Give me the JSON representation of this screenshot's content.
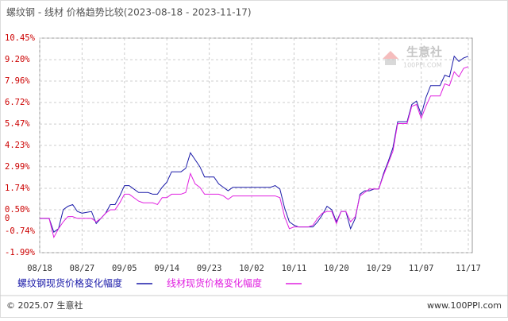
{
  "chart_data": {
    "type": "line",
    "title": "螺纹钢 - 线材 价格趋势比较(2023-08-18 - 2023-11-17)",
    "categories": [
      "08/18",
      null,
      null,
      null,
      null,
      null,
      null,
      null,
      null,
      "08/27",
      null,
      null,
      null,
      null,
      null,
      null,
      null,
      null,
      "09/05",
      null,
      null,
      null,
      null,
      null,
      null,
      null,
      null,
      "09/14",
      null,
      null,
      null,
      null,
      null,
      null,
      null,
      null,
      "09/23",
      null,
      null,
      null,
      null,
      null,
      null,
      null,
      null,
      "10/02",
      null,
      null,
      null,
      null,
      null,
      null,
      null,
      null,
      "10/11",
      null,
      null,
      null,
      null,
      null,
      null,
      null,
      null,
      "10/20",
      null,
      null,
      null,
      null,
      null,
      null,
      null,
      null,
      "10/29",
      null,
      null,
      null,
      null,
      null,
      null,
      null,
      null,
      "11/07",
      null,
      null,
      null,
      null,
      null,
      null,
      null,
      null,
      null,
      "11/17"
    ],
    "series": [
      {
        "name": "螺纹钢现货价格变化幅度",
        "color": "#1a1aa8",
        "values": [
          0,
          0,
          0,
          -0.8,
          -0.6,
          0.5,
          0.7,
          0.8,
          0.4,
          0.3,
          0.35,
          0.4,
          -0.3,
          0,
          0.3,
          0.8,
          0.8,
          1.3,
          1.9,
          1.9,
          1.7,
          1.5,
          1.5,
          1.5,
          1.4,
          1.4,
          1.8,
          2.1,
          2.7,
          2.7,
          2.7,
          2.9,
          3.8,
          3.4,
          3.0,
          2.4,
          2.4,
          2.4,
          2.0,
          1.8,
          1.6,
          1.8,
          1.8,
          1.8,
          1.8,
          1.8,
          1.8,
          1.8,
          1.8,
          1.8,
          1.9,
          1.7,
          0.6,
          -0.2,
          -0.4,
          -0.5,
          -0.5,
          -0.5,
          -0.5,
          -0.2,
          0.2,
          0.7,
          0.5,
          -0.2,
          0.4,
          0.4,
          -0.6,
          0,
          1.4,
          1.6,
          1.6,
          1.7,
          1.7,
          2.6,
          3.3,
          4.1,
          5.6,
          5.6,
          5.6,
          6.6,
          6.8,
          6.0,
          7.0,
          7.7,
          7.7,
          7.7,
          8.3,
          8.2,
          9.4,
          9.1,
          9.3,
          9.4
        ]
      },
      {
        "name": "线材现货价格变化幅度",
        "color": "#e020e0",
        "values": [
          0,
          0,
          0,
          -1.1,
          -0.6,
          -0.2,
          0.1,
          0.1,
          0,
          0,
          0,
          0,
          -0.2,
          0,
          0.3,
          0.5,
          0.5,
          0.9,
          1.4,
          1.4,
          1.2,
          1.0,
          0.9,
          0.9,
          0.9,
          0.8,
          1.2,
          1.2,
          1.4,
          1.4,
          1.4,
          1.5,
          2.6,
          2.0,
          1.8,
          1.4,
          1.4,
          1.4,
          1.4,
          1.3,
          1.1,
          1.3,
          1.3,
          1.3,
          1.3,
          1.3,
          1.3,
          1.3,
          1.3,
          1.3,
          1.3,
          1.2,
          0.1,
          -0.6,
          -0.5,
          -0.5,
          -0.5,
          -0.5,
          -0.4,
          0,
          0.3,
          0.4,
          0.4,
          -0.3,
          0.4,
          0.4,
          -0.2,
          0.1,
          1.3,
          1.5,
          1.7,
          1.7,
          1.7,
          2.5,
          3.2,
          3.9,
          5.5,
          5.5,
          5.5,
          6.5,
          6.6,
          5.8,
          6.5,
          7.1,
          7.1,
          7.1,
          7.8,
          7.7,
          8.5,
          8.2,
          8.7,
          8.8
        ]
      }
    ],
    "ylim": [
      -1.99,
      10.45
    ],
    "yticks": [
      {
        "value": -1.99,
        "label": "-1.99%"
      },
      {
        "value": -0.74,
        "label": "-0.74%"
      },
      0,
      {
        "value": 0.5,
        "label": "0.50%"
      },
      {
        "value": 1.74,
        "label": "1.74%"
      },
      {
        "value": 2.99,
        "label": "2.99%"
      },
      {
        "value": 4.23,
        "label": "4.23%"
      },
      {
        "value": 5.47,
        "label": "5.47%"
      },
      {
        "value": 6.72,
        "label": "6.72%"
      },
      {
        "value": 7.96,
        "label": "7.96%"
      },
      {
        "value": 9.2,
        "label": "9.20%"
      },
      {
        "value": 10.45,
        "label": "10.45%"
      }
    ],
    "grid": true,
    "watermark": {
      "name": "生意社",
      "site": "100PPI.COM"
    },
    "footer": {
      "copyright": "© 2025.07 生意社",
      "url": "www.100PPI.com"
    }
  }
}
